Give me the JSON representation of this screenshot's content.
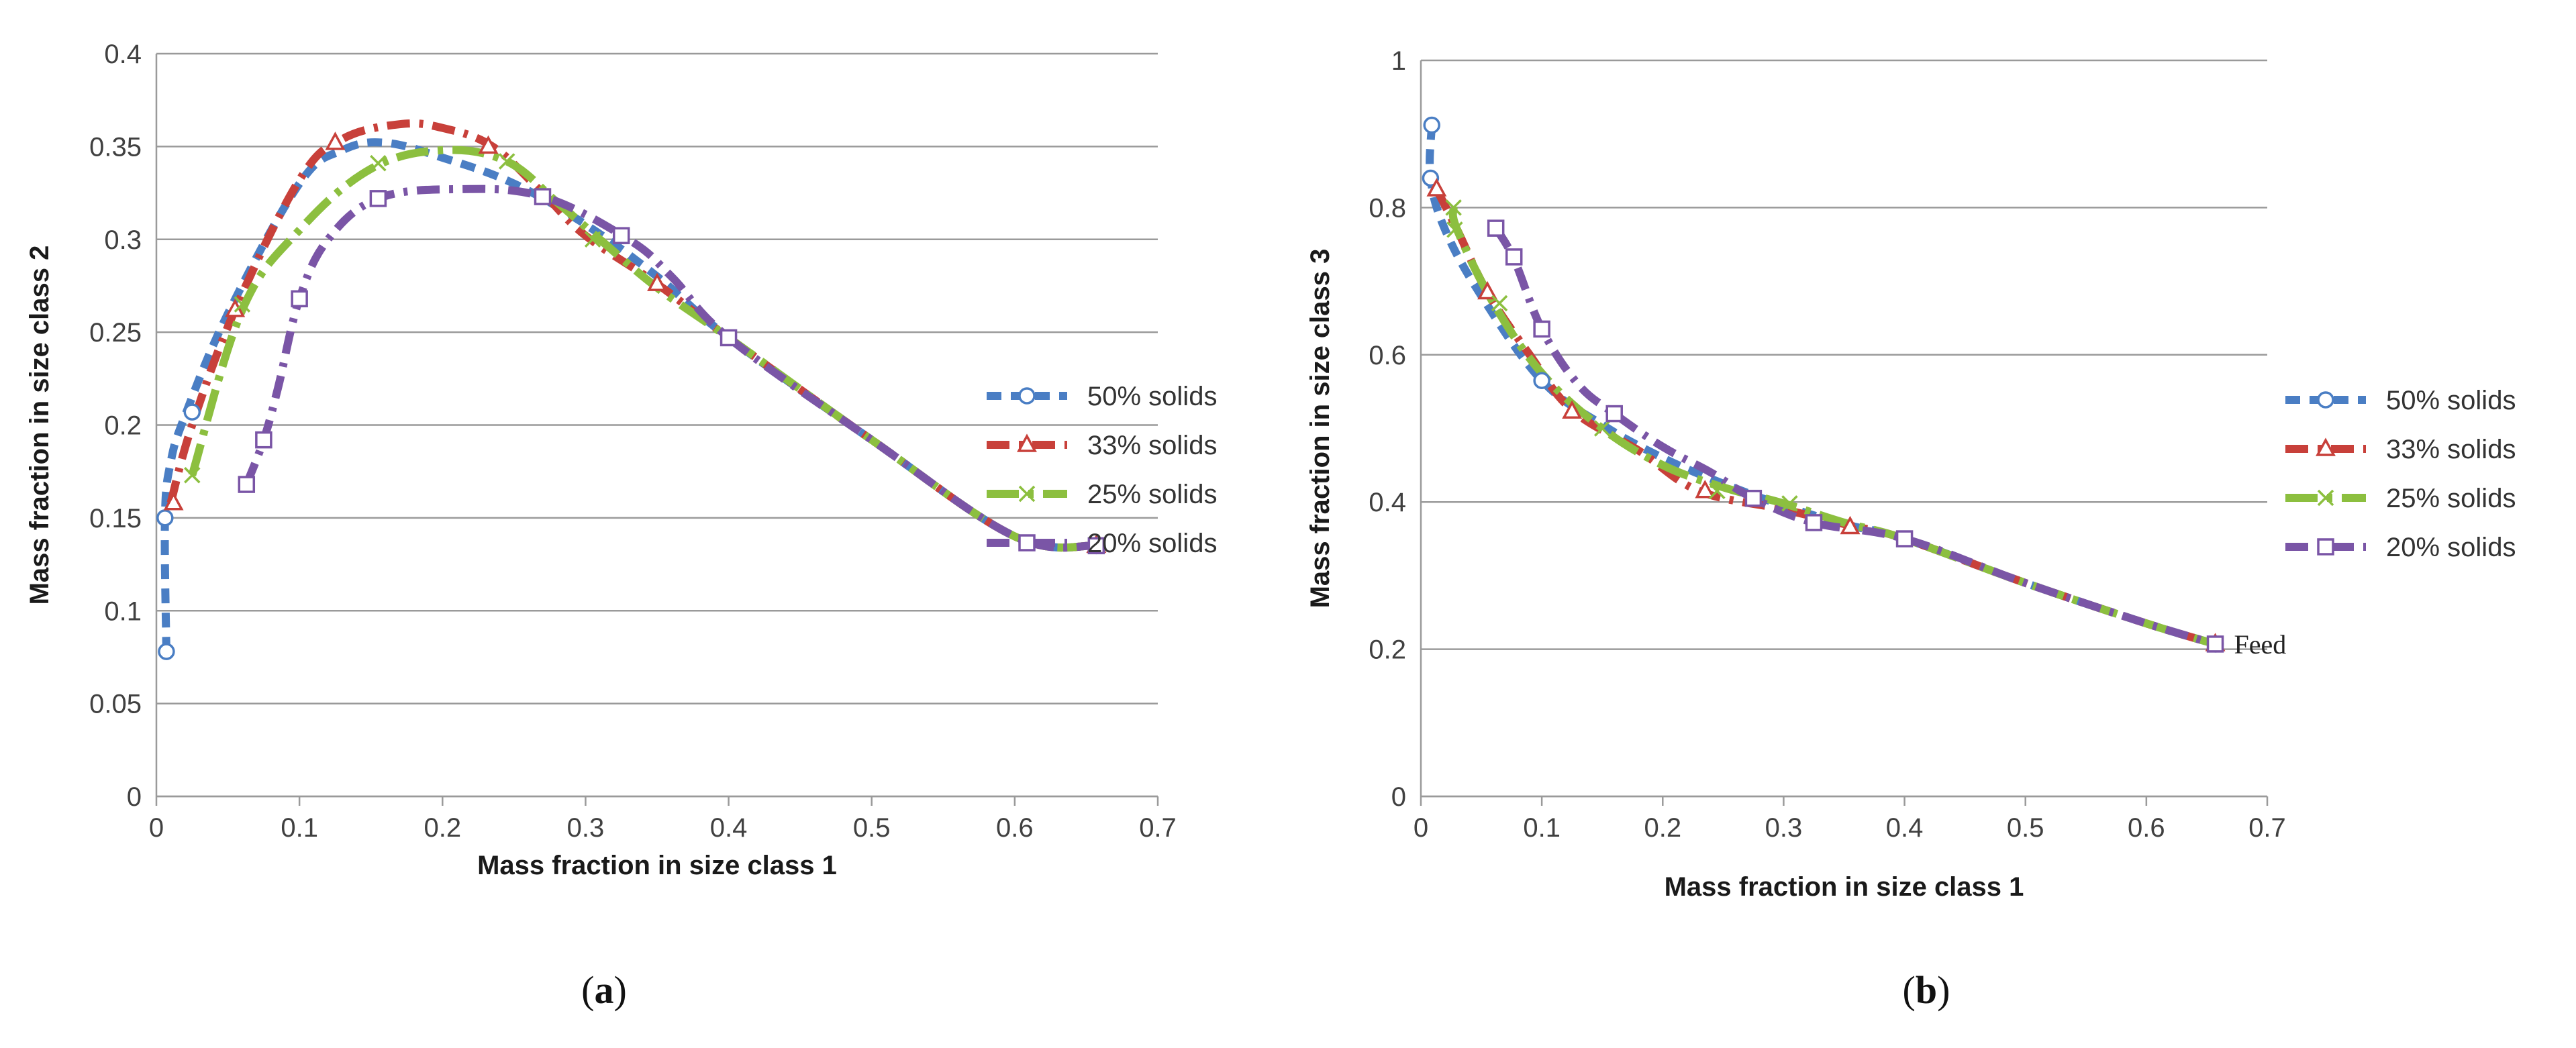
{
  "chart_data": [
    {
      "panel": "(a)",
      "type": "line",
      "title": "",
      "xlabel": "Mass fraction in size class 1",
      "ylabel": "Mass fraction in size class 2",
      "xlim": [
        0,
        0.7
      ],
      "ylim": [
        0,
        0.4
      ],
      "x_ticks": [
        0,
        0.1,
        0.2,
        0.3,
        0.4,
        0.5,
        0.6,
        0.7
      ],
      "x_tick_labels": [
        "0",
        "0.1",
        "0.2",
        "0.3",
        "0.4",
        "0.5",
        "0.6",
        "0.7"
      ],
      "y_ticks": [
        0,
        0.05,
        0.1,
        0.15,
        0.2,
        0.25,
        0.3,
        0.35,
        0.4
      ],
      "y_tick_labels": [
        "0",
        "0.05",
        "0.1",
        "0.15",
        "0.2",
        "0.25",
        "0.3",
        "0.35",
        "0.4"
      ],
      "grid": "horizontal",
      "legend_position": "right",
      "annotations": [],
      "series": [
        {
          "name": "50% solids",
          "color": "#4a7ec4",
          "marker": "circle",
          "dash": "short-dash",
          "curve": [
            [
              0.007,
              0.078
            ],
            [
              0.006,
              0.15
            ],
            [
              0.01,
              0.18
            ],
            [
              0.02,
              0.205
            ],
            [
              0.05,
              0.26
            ],
            [
              0.1,
              0.33
            ],
            [
              0.13,
              0.348
            ],
            [
              0.16,
              0.352
            ],
            [
              0.2,
              0.344
            ],
            [
              0.25,
              0.33
            ],
            [
              0.3,
              0.308
            ],
            [
              0.35,
              0.28
            ],
            [
              0.4,
              0.247
            ],
            [
              0.5,
              0.192
            ],
            [
              0.6,
              0.14
            ],
            [
              0.657,
              0.135
            ]
          ],
          "markers": [
            [
              0.007,
              0.078
            ],
            [
              0.006,
              0.15
            ],
            [
              0.025,
              0.207
            ],
            [
              0.657,
              0.135
            ]
          ]
        },
        {
          "name": "33% solids",
          "color": "#c8403a",
          "marker": "triangle",
          "dash": "dash-dot",
          "curve": [
            [
              0.01,
              0.158
            ],
            [
              0.025,
              0.2
            ],
            [
              0.055,
              0.262
            ],
            [
              0.1,
              0.332
            ],
            [
              0.13,
              0.354
            ],
            [
              0.17,
              0.362
            ],
            [
              0.2,
              0.36
            ],
            [
              0.235,
              0.35
            ],
            [
              0.27,
              0.325
            ],
            [
              0.3,
              0.302
            ],
            [
              0.35,
              0.276
            ],
            [
              0.4,
              0.247
            ],
            [
              0.5,
              0.192
            ],
            [
              0.6,
              0.14
            ],
            [
              0.657,
              0.135
            ]
          ],
          "markers": [
            [
              0.012,
              0.158
            ],
            [
              0.055,
              0.262
            ],
            [
              0.125,
              0.352
            ],
            [
              0.232,
              0.35
            ],
            [
              0.35,
              0.276
            ],
            [
              0.657,
              0.135
            ]
          ]
        },
        {
          "name": "25% solids",
          "color": "#8cbf3f",
          "marker": "x",
          "dash": "long-dash-dot",
          "curve": [
            [
              0.025,
              0.173
            ],
            [
              0.06,
              0.262
            ],
            [
              0.1,
              0.305
            ],
            [
              0.15,
              0.338
            ],
            [
              0.2,
              0.348
            ],
            [
              0.245,
              0.342
            ],
            [
              0.28,
              0.32
            ],
            [
              0.31,
              0.3
            ],
            [
              0.35,
              0.274
            ],
            [
              0.4,
              0.247
            ],
            [
              0.5,
              0.192
            ],
            [
              0.6,
              0.14
            ],
            [
              0.657,
              0.135
            ]
          ],
          "markers": [
            [
              0.025,
              0.173
            ],
            [
              0.06,
              0.265
            ],
            [
              0.155,
              0.341
            ],
            [
              0.245,
              0.342
            ],
            [
              0.305,
              0.3
            ],
            [
              0.657,
              0.135
            ]
          ]
        },
        {
          "name": "20% solids",
          "color": "#7a55a6",
          "marker": "square",
          "dash": "dash-dot",
          "curve": [
            [
              0.063,
              0.168
            ],
            [
              0.075,
              0.192
            ],
            [
              0.085,
              0.22
            ],
            [
              0.1,
              0.268
            ],
            [
              0.12,
              0.3
            ],
            [
              0.155,
              0.322
            ],
            [
              0.21,
              0.327
            ],
            [
              0.27,
              0.323
            ],
            [
              0.33,
              0.3
            ],
            [
              0.36,
              0.28
            ],
            [
              0.4,
              0.247
            ],
            [
              0.5,
              0.192
            ],
            [
              0.6,
              0.14
            ],
            [
              0.657,
              0.135
            ]
          ],
          "markers": [
            [
              0.063,
              0.168
            ],
            [
              0.075,
              0.192
            ],
            [
              0.1,
              0.268
            ],
            [
              0.155,
              0.322
            ],
            [
              0.27,
              0.323
            ],
            [
              0.325,
              0.302
            ],
            [
              0.4,
              0.247
            ],
            [
              0.657,
              0.135
            ]
          ]
        }
      ]
    },
    {
      "panel": "(b)",
      "type": "line",
      "title": "",
      "xlabel": "Mass fraction in size class 1",
      "ylabel": "Mass fraction in size class 3",
      "xlim": [
        0,
        0.7
      ],
      "ylim": [
        0,
        1
      ],
      "x_ticks": [
        0,
        0.1,
        0.2,
        0.3,
        0.4,
        0.5,
        0.6,
        0.7
      ],
      "x_tick_labels": [
        "0",
        "0.1",
        "0.2",
        "0.3",
        "0.4",
        "0.5",
        "0.6",
        "0.7"
      ],
      "y_ticks": [
        0,
        0.2,
        0.4,
        0.6,
        0.8,
        1
      ],
      "y_tick_labels": [
        "0",
        "0.2",
        "0.4",
        "0.6",
        "0.8",
        "1"
      ],
      "grid": "horizontal",
      "legend_position": "right",
      "annotations": [
        {
          "text": "Feed",
          "x": 0.657,
          "y": 0.207
        }
      ],
      "series": [
        {
          "name": "50% solids",
          "color": "#4a7ec4",
          "marker": "circle",
          "dash": "short-dash",
          "curve": [
            [
              0.009,
              0.912
            ],
            [
              0.008,
              0.84
            ],
            [
              0.02,
              0.77
            ],
            [
              0.05,
              0.68
            ],
            [
              0.1,
              0.565
            ],
            [
              0.15,
              0.505
            ],
            [
              0.2,
              0.46
            ],
            [
              0.25,
              0.425
            ],
            [
              0.3,
              0.395
            ],
            [
              0.35,
              0.37
            ],
            [
              0.4,
              0.35
            ],
            [
              0.5,
              0.29
            ],
            [
              0.6,
              0.235
            ],
            [
              0.657,
              0.207
            ]
          ],
          "markers": [
            [
              0.009,
              0.912
            ],
            [
              0.008,
              0.84
            ],
            [
              0.1,
              0.565
            ],
            [
              0.657,
              0.207
            ]
          ]
        },
        {
          "name": "33% solids",
          "color": "#c8403a",
          "marker": "triangle",
          "dash": "dash-dot",
          "curve": [
            [
              0.013,
              0.825
            ],
            [
              0.03,
              0.77
            ],
            [
              0.055,
              0.685
            ],
            [
              0.09,
              0.6
            ],
            [
              0.125,
              0.525
            ],
            [
              0.18,
              0.47
            ],
            [
              0.23,
              0.415
            ],
            [
              0.3,
              0.39
            ],
            [
              0.355,
              0.368
            ],
            [
              0.4,
              0.35
            ],
            [
              0.5,
              0.29
            ],
            [
              0.6,
              0.235
            ],
            [
              0.657,
              0.207
            ]
          ],
          "markers": [
            [
              0.013,
              0.825
            ],
            [
              0.055,
              0.685
            ],
            [
              0.125,
              0.523
            ],
            [
              0.235,
              0.415
            ],
            [
              0.355,
              0.366
            ],
            [
              0.657,
              0.207
            ]
          ]
        },
        {
          "name": "25% solids",
          "color": "#8cbf3f",
          "marker": "x",
          "dash": "long-dash-dot",
          "curve": [
            [
              0.027,
              0.8
            ],
            [
              0.03,
              0.77
            ],
            [
              0.06,
              0.67
            ],
            [
              0.1,
              0.575
            ],
            [
              0.15,
              0.5
            ],
            [
              0.2,
              0.45
            ],
            [
              0.25,
              0.42
            ],
            [
              0.3,
              0.398
            ],
            [
              0.35,
              0.372
            ],
            [
              0.4,
              0.35
            ],
            [
              0.5,
              0.29
            ],
            [
              0.6,
              0.235
            ],
            [
              0.657,
              0.207
            ]
          ],
          "markers": [
            [
              0.027,
              0.8
            ],
            [
              0.028,
              0.77
            ],
            [
              0.065,
              0.67
            ],
            [
              0.15,
              0.5
            ],
            [
              0.245,
              0.415
            ],
            [
              0.305,
              0.398
            ],
            [
              0.657,
              0.207
            ]
          ]
        },
        {
          "name": "20% solids",
          "color": "#7a55a6",
          "marker": "square",
          "dash": "dash-dot",
          "curve": [
            [
              0.062,
              0.772
            ],
            [
              0.077,
              0.73
            ],
            [
              0.1,
              0.635
            ],
            [
              0.13,
              0.56
            ],
            [
              0.16,
              0.52
            ],
            [
              0.2,
              0.475
            ],
            [
              0.24,
              0.44
            ],
            [
              0.275,
              0.405
            ],
            [
              0.325,
              0.372
            ],
            [
              0.4,
              0.35
            ],
            [
              0.5,
              0.29
            ],
            [
              0.6,
              0.235
            ],
            [
              0.657,
              0.207
            ]
          ],
          "markers": [
            [
              0.062,
              0.772
            ],
            [
              0.077,
              0.733
            ],
            [
              0.1,
              0.635
            ],
            [
              0.16,
              0.52
            ],
            [
              0.275,
              0.405
            ],
            [
              0.325,
              0.372
            ],
            [
              0.4,
              0.35
            ],
            [
              0.657,
              0.207
            ]
          ]
        }
      ]
    }
  ],
  "panel_labels": {
    "a": {
      "open": "(",
      "letter": "a",
      "close": ")"
    },
    "b": {
      "open": "(",
      "letter": "b",
      "close": ")"
    }
  }
}
